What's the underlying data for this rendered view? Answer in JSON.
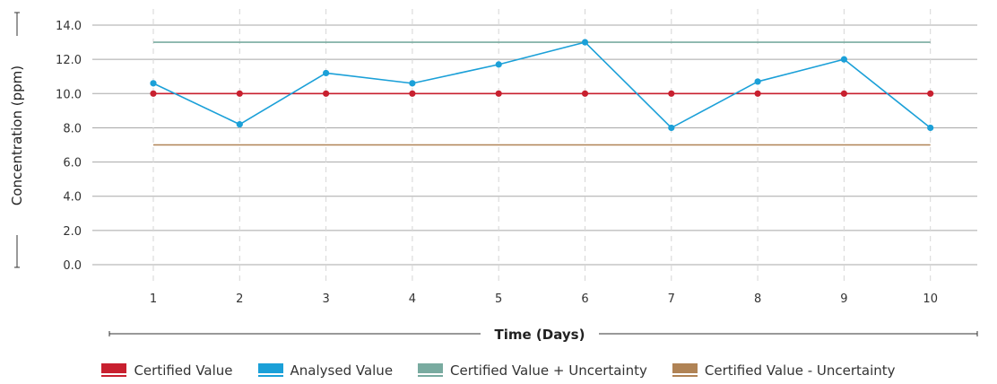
{
  "chart_data": {
    "type": "line",
    "xlabel": "Time (Days)",
    "ylabel": "Concentration (ppm)",
    "categories": [
      "1",
      "2",
      "3",
      "4",
      "5",
      "6",
      "7",
      "8",
      "9",
      "10"
    ],
    "y_ticks": [
      "0.0",
      "2.0",
      "4.0",
      "6.0",
      "8.0",
      "10.0",
      "12.0",
      "14.0"
    ],
    "ylim": [
      0,
      14
    ],
    "grid": "horizontal solid, vertical dashed",
    "legend_position": "bottom",
    "series": [
      {
        "name": "Certified Value",
        "color": "#c8202f",
        "markers": true,
        "values": [
          10,
          10,
          10,
          10,
          10,
          10,
          10,
          10,
          10,
          10
        ]
      },
      {
        "name": "Analysed Value",
        "color": "#1ba0d8",
        "markers": true,
        "values": [
          10.6,
          8.2,
          11.2,
          10.6,
          11.7,
          13.0,
          8.0,
          10.7,
          12.0,
          8.0
        ]
      },
      {
        "name": "Certified Value + Uncertainty",
        "color": "#79aba0",
        "markers": false,
        "values": [
          13,
          13,
          13,
          13,
          13,
          13,
          13,
          13,
          13,
          13
        ]
      },
      {
        "name": "Certified Value - Uncertainty",
        "color": "#b08355",
        "markers": false,
        "values": [
          7,
          7,
          7,
          7,
          7,
          7,
          7,
          7,
          7,
          7
        ]
      }
    ]
  }
}
